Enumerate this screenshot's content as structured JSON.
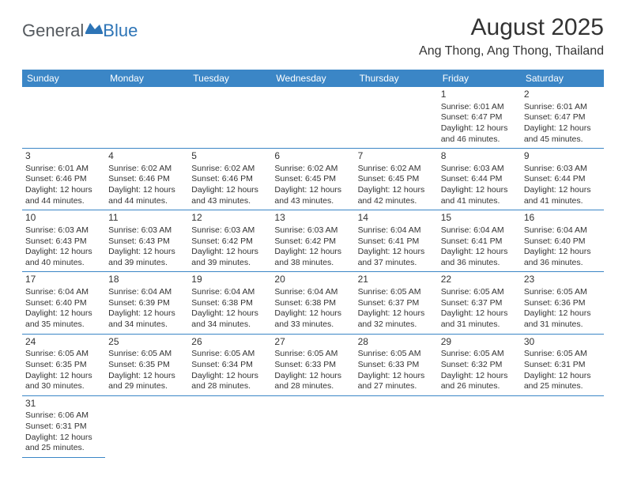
{
  "logo": {
    "text1": "General",
    "text2": "Blue"
  },
  "header": {
    "title": "August 2025",
    "location": "Ang Thong, Ang Thong, Thailand"
  },
  "colors": {
    "header_bg": "#3b86c6",
    "header_text": "#ffffff",
    "border": "#3b86c6",
    "logo_gray": "#555a5f",
    "logo_blue": "#2d74b6"
  },
  "weekdays": [
    "Sunday",
    "Monday",
    "Tuesday",
    "Wednesday",
    "Thursday",
    "Friday",
    "Saturday"
  ],
  "weeks": [
    [
      null,
      null,
      null,
      null,
      null,
      {
        "day": "1",
        "sunrise": "Sunrise: 6:01 AM",
        "sunset": "Sunset: 6:47 PM",
        "daylight": "Daylight: 12 hours and 46 minutes."
      },
      {
        "day": "2",
        "sunrise": "Sunrise: 6:01 AM",
        "sunset": "Sunset: 6:47 PM",
        "daylight": "Daylight: 12 hours and 45 minutes."
      }
    ],
    [
      {
        "day": "3",
        "sunrise": "Sunrise: 6:01 AM",
        "sunset": "Sunset: 6:46 PM",
        "daylight": "Daylight: 12 hours and 44 minutes."
      },
      {
        "day": "4",
        "sunrise": "Sunrise: 6:02 AM",
        "sunset": "Sunset: 6:46 PM",
        "daylight": "Daylight: 12 hours and 44 minutes."
      },
      {
        "day": "5",
        "sunrise": "Sunrise: 6:02 AM",
        "sunset": "Sunset: 6:46 PM",
        "daylight": "Daylight: 12 hours and 43 minutes."
      },
      {
        "day": "6",
        "sunrise": "Sunrise: 6:02 AM",
        "sunset": "Sunset: 6:45 PM",
        "daylight": "Daylight: 12 hours and 43 minutes."
      },
      {
        "day": "7",
        "sunrise": "Sunrise: 6:02 AM",
        "sunset": "Sunset: 6:45 PM",
        "daylight": "Daylight: 12 hours and 42 minutes."
      },
      {
        "day": "8",
        "sunrise": "Sunrise: 6:03 AM",
        "sunset": "Sunset: 6:44 PM",
        "daylight": "Daylight: 12 hours and 41 minutes."
      },
      {
        "day": "9",
        "sunrise": "Sunrise: 6:03 AM",
        "sunset": "Sunset: 6:44 PM",
        "daylight": "Daylight: 12 hours and 41 minutes."
      }
    ],
    [
      {
        "day": "10",
        "sunrise": "Sunrise: 6:03 AM",
        "sunset": "Sunset: 6:43 PM",
        "daylight": "Daylight: 12 hours and 40 minutes."
      },
      {
        "day": "11",
        "sunrise": "Sunrise: 6:03 AM",
        "sunset": "Sunset: 6:43 PM",
        "daylight": "Daylight: 12 hours and 39 minutes."
      },
      {
        "day": "12",
        "sunrise": "Sunrise: 6:03 AM",
        "sunset": "Sunset: 6:42 PM",
        "daylight": "Daylight: 12 hours and 39 minutes."
      },
      {
        "day": "13",
        "sunrise": "Sunrise: 6:03 AM",
        "sunset": "Sunset: 6:42 PM",
        "daylight": "Daylight: 12 hours and 38 minutes."
      },
      {
        "day": "14",
        "sunrise": "Sunrise: 6:04 AM",
        "sunset": "Sunset: 6:41 PM",
        "daylight": "Daylight: 12 hours and 37 minutes."
      },
      {
        "day": "15",
        "sunrise": "Sunrise: 6:04 AM",
        "sunset": "Sunset: 6:41 PM",
        "daylight": "Daylight: 12 hours and 36 minutes."
      },
      {
        "day": "16",
        "sunrise": "Sunrise: 6:04 AM",
        "sunset": "Sunset: 6:40 PM",
        "daylight": "Daylight: 12 hours and 36 minutes."
      }
    ],
    [
      {
        "day": "17",
        "sunrise": "Sunrise: 6:04 AM",
        "sunset": "Sunset: 6:40 PM",
        "daylight": "Daylight: 12 hours and 35 minutes."
      },
      {
        "day": "18",
        "sunrise": "Sunrise: 6:04 AM",
        "sunset": "Sunset: 6:39 PM",
        "daylight": "Daylight: 12 hours and 34 minutes."
      },
      {
        "day": "19",
        "sunrise": "Sunrise: 6:04 AM",
        "sunset": "Sunset: 6:38 PM",
        "daylight": "Daylight: 12 hours and 34 minutes."
      },
      {
        "day": "20",
        "sunrise": "Sunrise: 6:04 AM",
        "sunset": "Sunset: 6:38 PM",
        "daylight": "Daylight: 12 hours and 33 minutes."
      },
      {
        "day": "21",
        "sunrise": "Sunrise: 6:05 AM",
        "sunset": "Sunset: 6:37 PM",
        "daylight": "Daylight: 12 hours and 32 minutes."
      },
      {
        "day": "22",
        "sunrise": "Sunrise: 6:05 AM",
        "sunset": "Sunset: 6:37 PM",
        "daylight": "Daylight: 12 hours and 31 minutes."
      },
      {
        "day": "23",
        "sunrise": "Sunrise: 6:05 AM",
        "sunset": "Sunset: 6:36 PM",
        "daylight": "Daylight: 12 hours and 31 minutes."
      }
    ],
    [
      {
        "day": "24",
        "sunrise": "Sunrise: 6:05 AM",
        "sunset": "Sunset: 6:35 PM",
        "daylight": "Daylight: 12 hours and 30 minutes."
      },
      {
        "day": "25",
        "sunrise": "Sunrise: 6:05 AM",
        "sunset": "Sunset: 6:35 PM",
        "daylight": "Daylight: 12 hours and 29 minutes."
      },
      {
        "day": "26",
        "sunrise": "Sunrise: 6:05 AM",
        "sunset": "Sunset: 6:34 PM",
        "daylight": "Daylight: 12 hours and 28 minutes."
      },
      {
        "day": "27",
        "sunrise": "Sunrise: 6:05 AM",
        "sunset": "Sunset: 6:33 PM",
        "daylight": "Daylight: 12 hours and 28 minutes."
      },
      {
        "day": "28",
        "sunrise": "Sunrise: 6:05 AM",
        "sunset": "Sunset: 6:33 PM",
        "daylight": "Daylight: 12 hours and 27 minutes."
      },
      {
        "day": "29",
        "sunrise": "Sunrise: 6:05 AM",
        "sunset": "Sunset: 6:32 PM",
        "daylight": "Daylight: 12 hours and 26 minutes."
      },
      {
        "day": "30",
        "sunrise": "Sunrise: 6:05 AM",
        "sunset": "Sunset: 6:31 PM",
        "daylight": "Daylight: 12 hours and 25 minutes."
      }
    ],
    [
      {
        "day": "31",
        "sunrise": "Sunrise: 6:06 AM",
        "sunset": "Sunset: 6:31 PM",
        "daylight": "Daylight: 12 hours and 25 minutes."
      },
      null,
      null,
      null,
      null,
      null,
      null
    ]
  ]
}
